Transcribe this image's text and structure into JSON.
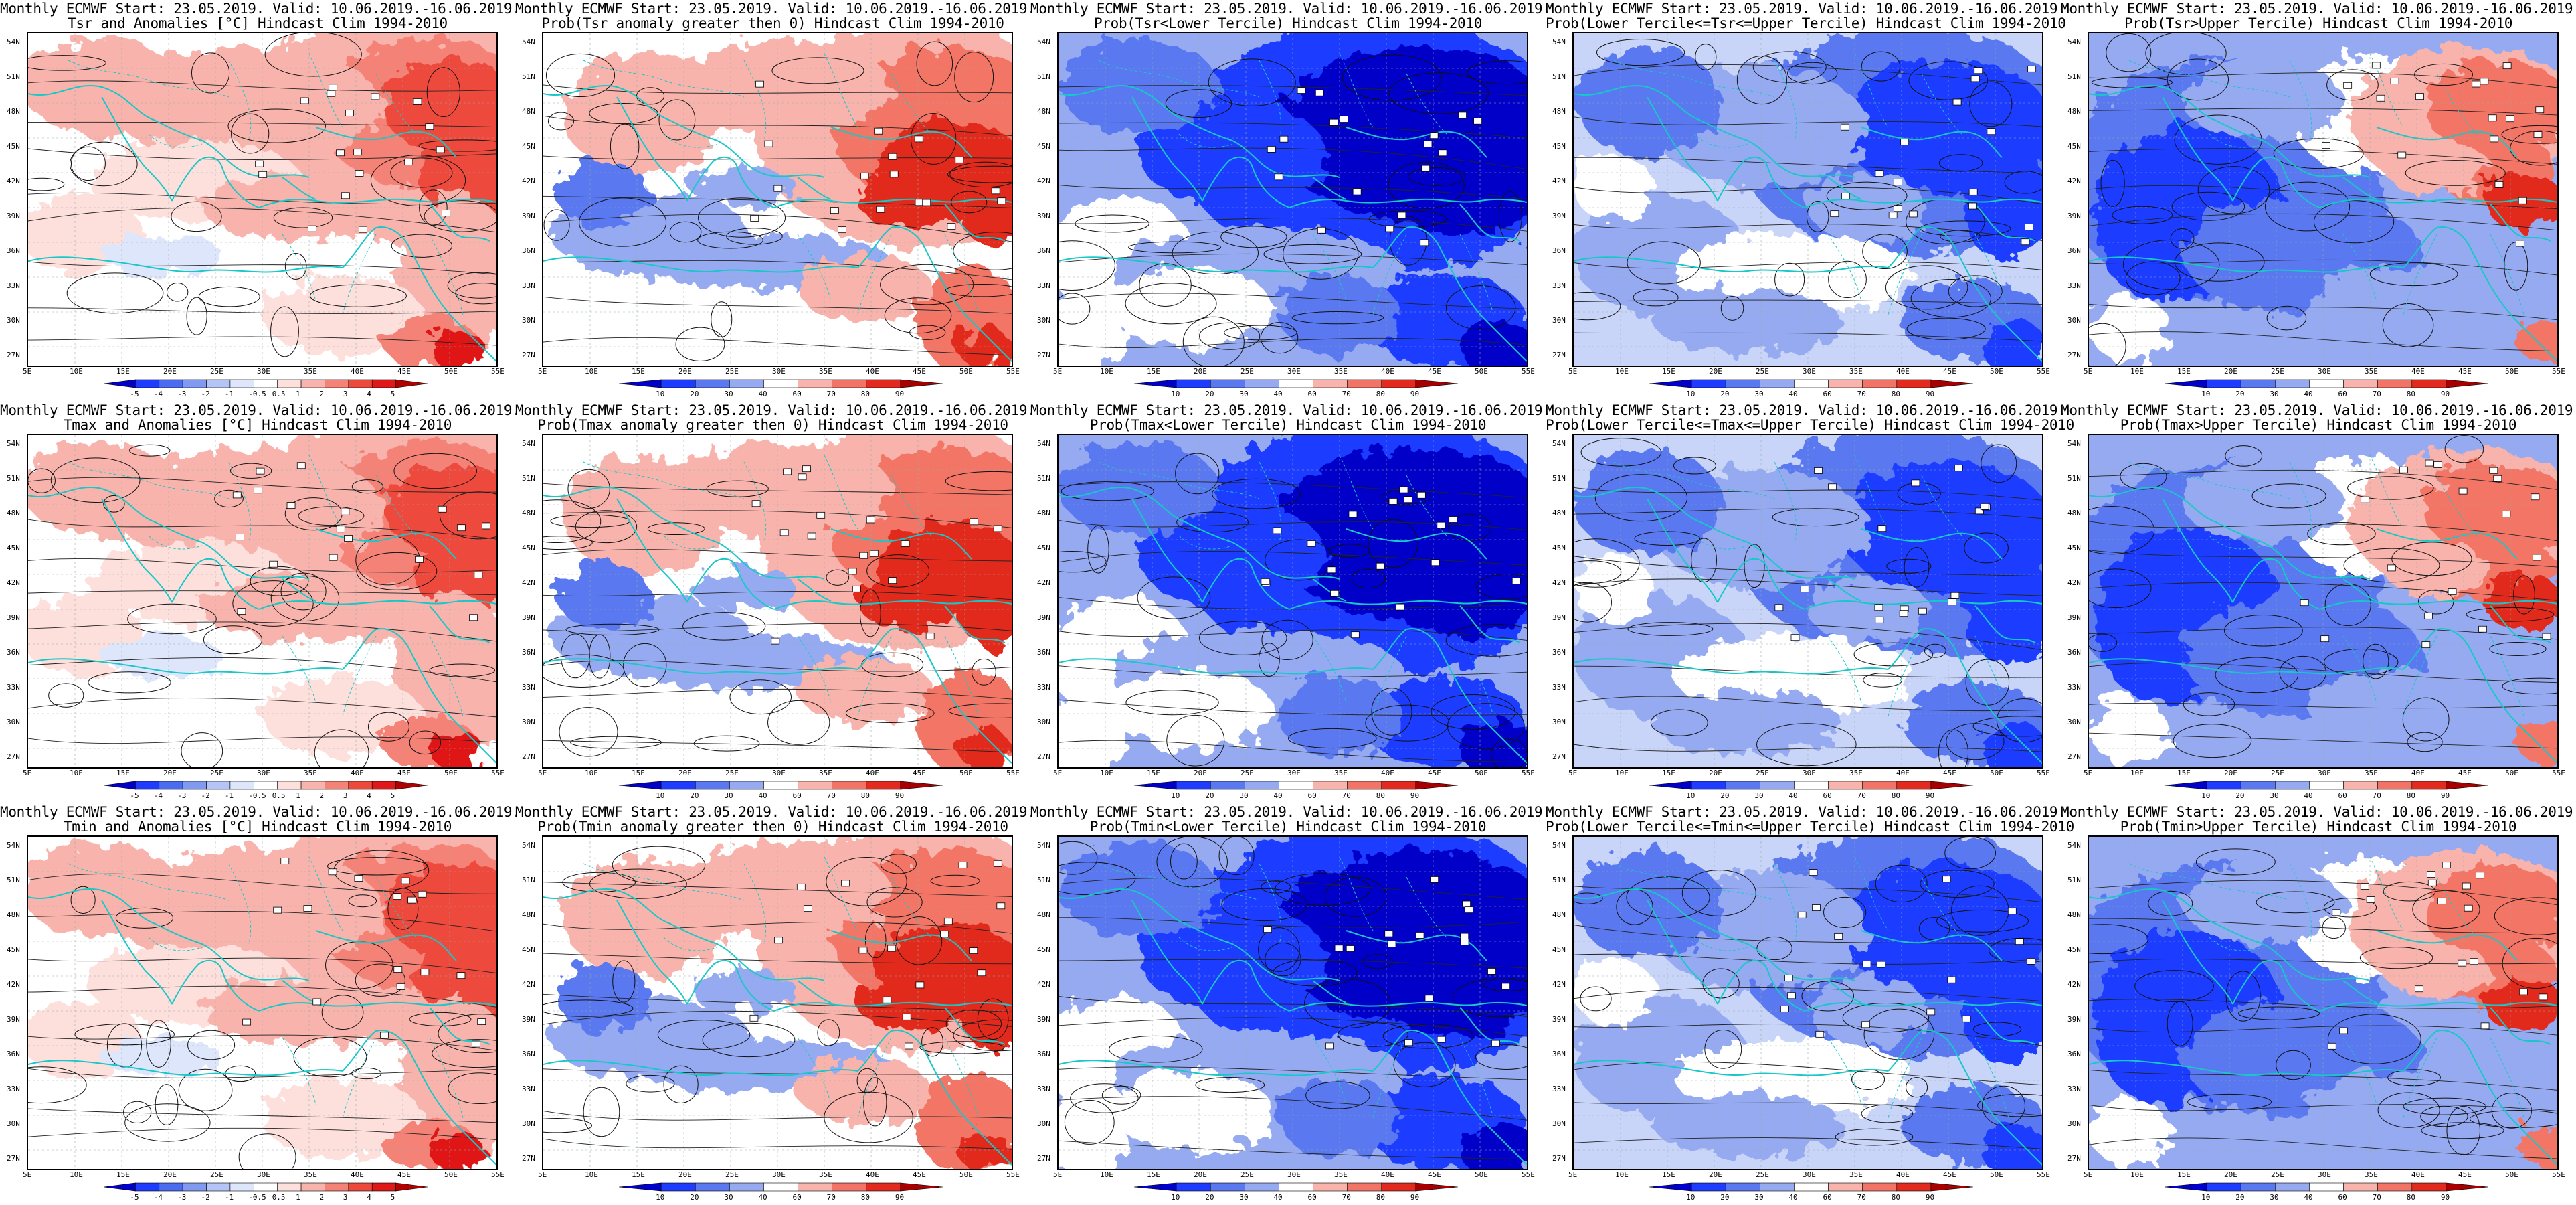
{
  "lat_labels": [
    "54N",
    "51N",
    "48N",
    "45N",
    "42N",
    "39N",
    "36N",
    "33N",
    "30N",
    "27N"
  ],
  "lon_labels": [
    "5E",
    "10E",
    "15E",
    "20E",
    "25E",
    "30E",
    "35E",
    "40E",
    "45E",
    "50E",
    "55E"
  ],
  "anomaly_scale": {
    "labels": [
      "-5",
      "-4",
      "-3",
      "-2",
      "-1",
      "-0.5",
      "0.5",
      "1",
      "2",
      "3",
      "4",
      "5"
    ],
    "colors": [
      "#0000c8",
      "#1e3cff",
      "#4a6cf0",
      "#7f9af0",
      "#b4c4f6",
      "#dde6fb",
      "#ffffff",
      "#fde0dc",
      "#f8b4ac",
      "#f48276",
      "#ee4a3c",
      "#e01818",
      "#b00000"
    ]
  },
  "probability_scale": {
    "labels": [
      "10",
      "20",
      "30",
      "40",
      "60",
      "70",
      "80",
      "90"
    ],
    "colors": [
      "#0000c8",
      "#1e3cff",
      "#5a78f0",
      "#96aaf2",
      "#ffffff",
      "#f8b4ac",
      "#f27466",
      "#e22a1e",
      "#a80000"
    ]
  },
  "panels": [
    {
      "line1": "Monthly ECMWF Start: 23.05.2019. Valid: 10.06.2019.-16.06.2019.",
      "line2": "Tsr and Anomalies [°C] Hindcast Clim 1994-2010",
      "scale": "anomaly",
      "pattern": "anom"
    },
    {
      "line1": "Monthly ECMWF Start: 23.05.2019. Valid: 10.06.2019.-16.06.2019.",
      "line2": "Prob(Tsr anomaly greater then 0) Hindcast Clim 1994-2010",
      "scale": "probability",
      "pattern": "above"
    },
    {
      "line1": "Monthly ECMWF Start: 23.05.2019. Valid: 10.06.2019.-16.06.2019.",
      "line2": "Prob(Tsr<Lower Tercile) Hindcast Clim 1994-2010",
      "scale": "probability",
      "pattern": "lower"
    },
    {
      "line1": "Monthly ECMWF Start: 23.05.2019. Valid: 10.06.2019.-16.06.2019.",
      "line2": "Prob(Lower Tercile<=Tsr<=Upper Tercile) Hindcast Clim 1994-2010",
      "scale": "probability",
      "pattern": "middle"
    },
    {
      "line1": "Monthly ECMWF Start: 23.05.2019. Valid: 10.06.2019.-16.06.2019.",
      "line2": "Prob(Tsr>Upper Tercile) Hindcast Clim 1994-2010",
      "scale": "probability",
      "pattern": "upper"
    },
    {
      "line1": "Monthly ECMWF Start: 23.05.2019. Valid: 10.06.2019.-16.06.2019.",
      "line2": "Tmax and Anomalies [°C] Hindcast Clim 1994-2010",
      "scale": "anomaly",
      "pattern": "anom"
    },
    {
      "line1": "Monthly ECMWF Start: 23.05.2019. Valid: 10.06.2019.-16.06.2019.",
      "line2": "Prob(Tmax anomaly greater then 0) Hindcast Clim 1994-2010",
      "scale": "probability",
      "pattern": "above"
    },
    {
      "line1": "Monthly ECMWF Start: 23.05.2019. Valid: 10.06.2019.-16.06.2019.",
      "line2": "Prob(Tmax<Lower Tercile) Hindcast Clim 1994-2010",
      "scale": "probability",
      "pattern": "lower"
    },
    {
      "line1": "Monthly ECMWF Start: 23.05.2019. Valid: 10.06.2019.-16.06.2019.",
      "line2": "Prob(Lower Tercile<=Tmax<=Upper Tercile) Hindcast Clim 1994-2010",
      "scale": "probability",
      "pattern": "middle"
    },
    {
      "line1": "Monthly ECMWF Start: 23.05.2019. Valid: 10.06.2019.-16.06.2019.",
      "line2": "Prob(Tmax>Upper Tercile) Hindcast Clim 1994-2010",
      "scale": "probability",
      "pattern": "upper"
    },
    {
      "line1": "Monthly ECMWF Start: 23.05.2019. Valid: 10.06.2019.-16.06.2019.",
      "line2": "Tmin and Anomalies [°C] Hindcast Clim 1994-2010",
      "scale": "anomaly",
      "pattern": "anom"
    },
    {
      "line1": "Monthly ECMWF Start: 23.05.2019. Valid: 10.06.2019.-16.06.2019.",
      "line2": "Prob(Tmin anomaly greater then 0) Hindcast Clim 1994-2010",
      "scale": "probability",
      "pattern": "above"
    },
    {
      "line1": "Monthly ECMWF Start: 23.05.2019. Valid: 10.06.2019.-16.06.2019.",
      "line2": "Prob(Tmin<Lower Tercile) Hindcast Clim 1994-2010",
      "scale": "probability",
      "pattern": "lower"
    },
    {
      "line1": "Monthly ECMWF Start: 23.05.2019. Valid: 10.06.2019.-16.06.2019.",
      "line2": "Prob(Lower Tercile<=Tmin<=Upper Tercile) Hindcast Clim 1994-2010",
      "scale": "probability",
      "pattern": "middle"
    },
    {
      "line1": "Monthly ECMWF Start: 23.05.2019. Valid: 10.06.2019.-16.06.2019.",
      "line2": "Prob(Tmin>Upper Tercile) Hindcast Clim 1994-2010",
      "scale": "probability",
      "pattern": "upper"
    }
  ]
}
